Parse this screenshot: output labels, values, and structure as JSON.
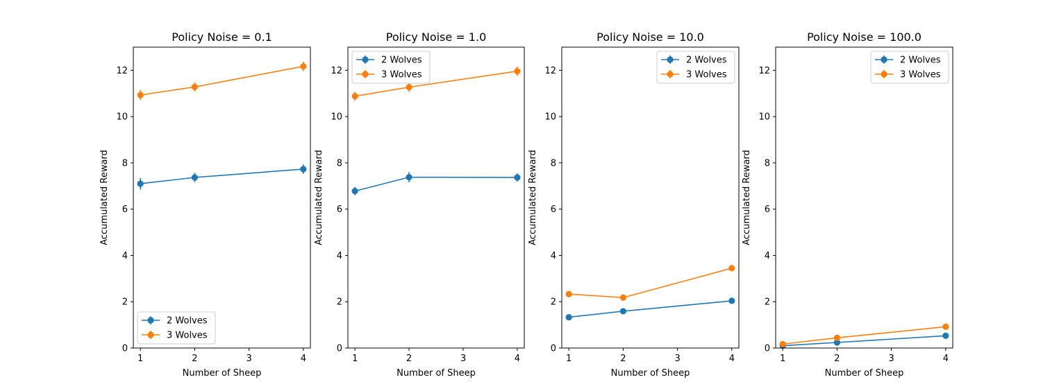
{
  "colors": {
    "series_1": "#1f77b4",
    "series_2": "#ff7f0e",
    "axes": "#000000",
    "background": "#ffffff"
  },
  "chart_data": [
    {
      "type": "line",
      "title": "Policy Noise = 0.1",
      "xlabel": "Number of Sheep",
      "ylabel": "Accumulated Reward",
      "x": [
        1,
        2,
        4
      ],
      "xticks": [
        "1",
        "2",
        "3",
        "4"
      ],
      "yticks": [
        "0",
        "2",
        "4",
        "6",
        "8",
        "10",
        "12"
      ],
      "xlim": [
        0.87,
        4.13
      ],
      "ylim": [
        0,
        13
      ],
      "legend_position": "lower-left",
      "series": [
        {
          "name": "2 Wolves",
          "values": [
            7.1,
            7.37,
            7.73
          ],
          "errors": [
            0.25,
            0.2,
            0.2
          ]
        },
        {
          "name": "3 Wolves",
          "values": [
            10.93,
            11.28,
            12.17
          ],
          "errors": [
            0.22,
            0.2,
            0.2
          ]
        }
      ]
    },
    {
      "type": "line",
      "title": "Policy Noise = 1.0",
      "xlabel": "Number of Sheep",
      "ylabel": "Accumulated Reward",
      "x": [
        1,
        2,
        4
      ],
      "xticks": [
        "1",
        "2",
        "3",
        "4"
      ],
      "yticks": [
        "0",
        "2",
        "4",
        "6",
        "8",
        "10",
        "12"
      ],
      "xlim": [
        0.87,
        4.13
      ],
      "ylim": [
        0,
        13
      ],
      "legend_position": "upper-left",
      "series": [
        {
          "name": "2 Wolves",
          "values": [
            6.78,
            7.38,
            7.37
          ],
          "errors": [
            0.18,
            0.22,
            0.18
          ]
        },
        {
          "name": "3 Wolves",
          "values": [
            10.88,
            11.27,
            11.96
          ],
          "errors": [
            0.2,
            0.2,
            0.2
          ]
        }
      ]
    },
    {
      "type": "line",
      "title": "Policy Noise = 10.0",
      "xlabel": "Number of Sheep",
      "ylabel": "Accumulated Reward",
      "x": [
        1,
        2,
        4
      ],
      "xticks": [
        "1",
        "2",
        "3",
        "4"
      ],
      "yticks": [
        "0",
        "2",
        "4",
        "6",
        "8",
        "10",
        "12"
      ],
      "xlim": [
        0.87,
        4.13
      ],
      "ylim": [
        0,
        13
      ],
      "legend_position": "upper-right",
      "series": [
        {
          "name": "2 Wolves",
          "values": [
            1.33,
            1.59,
            2.04
          ],
          "errors": [
            0.05,
            0.05,
            0.05
          ]
        },
        {
          "name": "3 Wolves",
          "values": [
            2.33,
            2.18,
            3.45
          ],
          "errors": [
            0.06,
            0.06,
            0.07
          ]
        }
      ]
    },
    {
      "type": "line",
      "title": "Policy Noise = 100.0",
      "xlabel": "Number of Sheep",
      "ylabel": "Accumulated Reward",
      "x": [
        1,
        2,
        4
      ],
      "xticks": [
        "1",
        "2",
        "3",
        "4"
      ],
      "yticks": [
        "0",
        "2",
        "4",
        "6",
        "8",
        "10",
        "12"
      ],
      "xlim": [
        0.87,
        4.13
      ],
      "ylim": [
        0,
        13
      ],
      "legend_position": "upper-right",
      "series": [
        {
          "name": "2 Wolves",
          "values": [
            0.1,
            0.24,
            0.53
          ],
          "errors": [
            0.03,
            0.03,
            0.03
          ]
        },
        {
          "name": "3 Wolves",
          "values": [
            0.17,
            0.44,
            0.92
          ],
          "errors": [
            0.03,
            0.04,
            0.04
          ]
        }
      ]
    }
  ]
}
